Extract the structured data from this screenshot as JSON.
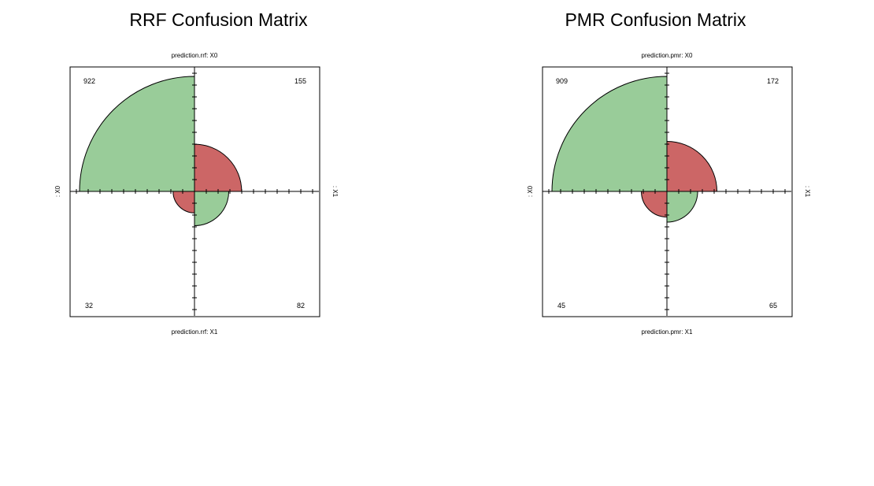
{
  "chart_data": [
    {
      "type": "fourfold",
      "title": "RRF Confusion Matrix",
      "labels": {
        "top": "prediction.rrf: X0",
        "bottom": "prediction.rrf: X1",
        "left": ": X0",
        "right": ": X1"
      },
      "cells": {
        "top_left": 922,
        "top_right": 155,
        "bottom_left": 32,
        "bottom_right": 82
      },
      "colors": {
        "diagonal": "#99cc99",
        "off_diagonal": "#cc6666"
      }
    },
    {
      "type": "fourfold",
      "title": "PMR Confusion Matrix",
      "labels": {
        "top": "prediction.pmr: X0",
        "bottom": "prediction.pmr: X1",
        "left": ": X0",
        "right": ": X1"
      },
      "cells": {
        "top_left": 909,
        "top_right": 172,
        "bottom_left": 45,
        "bottom_right": 65
      },
      "colors": {
        "diagonal": "#99cc99",
        "off_diagonal": "#cc6666"
      }
    }
  ]
}
